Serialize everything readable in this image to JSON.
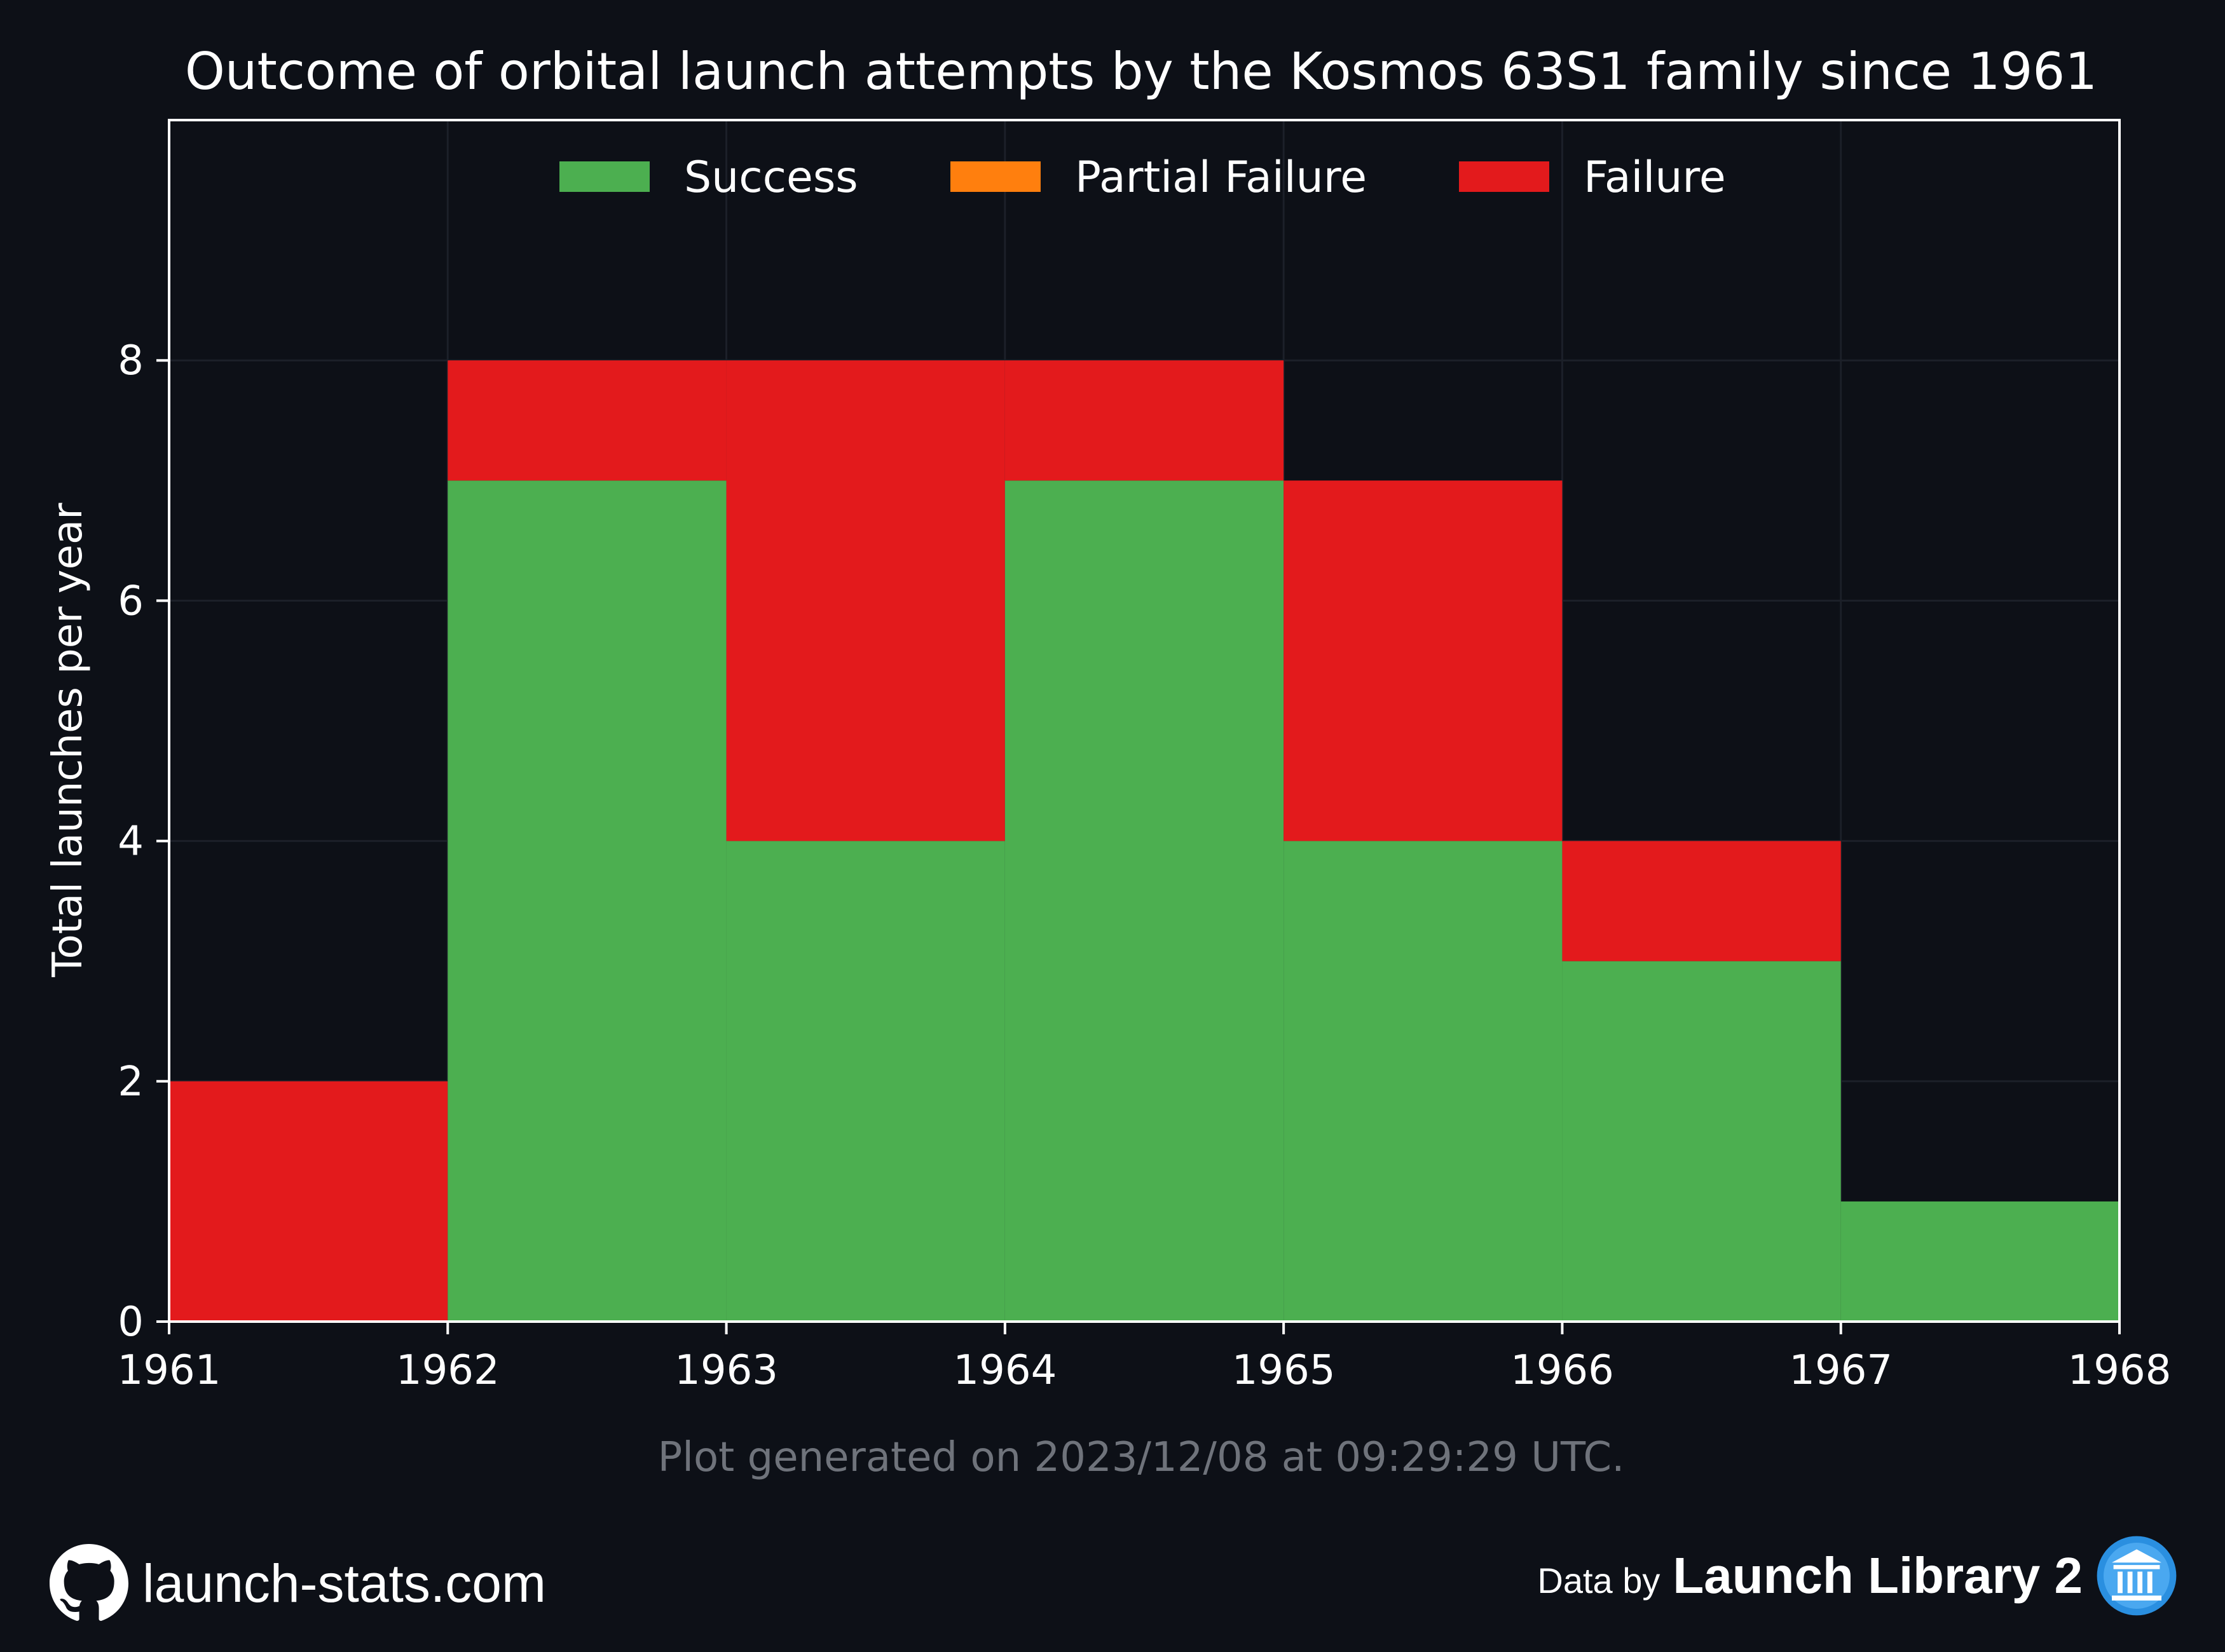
{
  "chart_data": {
    "type": "bar",
    "stacked": true,
    "title": "Outcome of orbital launch attempts by the Kosmos 63S1 family since 1961",
    "xlabel": "",
    "ylabel": "Total launches per year",
    "categories": [
      "1961",
      "1962",
      "1963",
      "1964",
      "1965",
      "1966",
      "1967"
    ],
    "x_ticks": [
      "1961",
      "1962",
      "1963",
      "1964",
      "1965",
      "1966",
      "1967",
      "1968"
    ],
    "y_ticks": [
      "0",
      "2",
      "4",
      "6",
      "8"
    ],
    "xlim": [
      1961,
      1968
    ],
    "ylim": [
      0,
      10
    ],
    "grid": true,
    "legend_position": "top-center",
    "series": [
      {
        "name": "Success",
        "color": "#4caf50",
        "values": [
          0,
          7,
          4,
          7,
          4,
          3,
          1
        ]
      },
      {
        "name": "Partial Failure",
        "color": "#ff7f0e",
        "values": [
          0,
          0,
          0,
          0,
          0,
          0,
          0
        ]
      },
      {
        "name": "Failure",
        "color": "#e31a1c",
        "values": [
          2,
          1,
          4,
          1,
          3,
          1,
          0
        ]
      }
    ]
  },
  "footnote": "Plot generated on 2023/12/08 at 09:29:29 UTC.",
  "footer": {
    "site": "launch-stats.com",
    "site_icon": "github-icon",
    "data_by": "Data by",
    "source": "Launch Library 2",
    "source_icon": "launch-library-logo-icon"
  },
  "colors": {
    "background": "#0d1017",
    "axes": "#ffffff",
    "grid": "#1c2029",
    "footnote": "#6f737b"
  }
}
